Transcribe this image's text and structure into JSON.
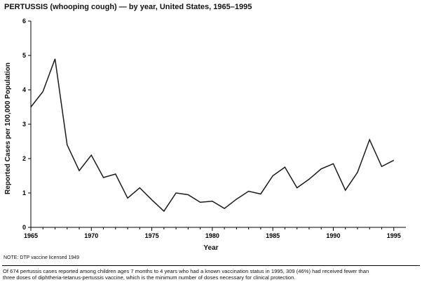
{
  "title": "PERTUSSIS (whooping cough) — by year, United States, 1965–1995",
  "note": "NOTE: DTP vaccine licensed 1949",
  "footnote_line1": "Of 674 pertussis cases reported among children ages 7 months to 4 years who had a known vaccination status in 1995, 309 (46%) had received fewer than",
  "footnote_line2": "three doses of diphtheria-tetanus-pertussis vaccine, which is the minimum number of doses necessary for clinical protection.",
  "chart_data": {
    "type": "line",
    "title": "PERTUSSIS (whooping cough) — by year, United States, 1965–1995",
    "xlabel": "Year",
    "ylabel": "Reported Cases per 100,000 Population",
    "ylim": [
      0,
      6
    ],
    "y_ticks": [
      0,
      1,
      2,
      3,
      4,
      5,
      6
    ],
    "x_ticks": [
      1965,
      1970,
      1975,
      1980,
      1985,
      1990,
      1995
    ],
    "x": [
      1965,
      1966,
      1967,
      1968,
      1969,
      1970,
      1971,
      1972,
      1973,
      1974,
      1975,
      1976,
      1977,
      1978,
      1979,
      1980,
      1981,
      1982,
      1983,
      1984,
      1985,
      1986,
      1987,
      1988,
      1989,
      1990,
      1991,
      1992,
      1993,
      1994,
      1995
    ],
    "values": [
      3.5,
      3.95,
      4.9,
      2.4,
      1.65,
      2.1,
      1.45,
      1.55,
      0.85,
      1.15,
      0.8,
      0.47,
      1.0,
      0.95,
      0.73,
      0.76,
      0.55,
      0.82,
      1.05,
      0.97,
      1.5,
      1.75,
      1.15,
      1.4,
      1.7,
      1.85,
      1.08,
      1.6,
      2.55,
      1.77,
      1.95
    ],
    "line_color": "#1a1a1a",
    "grid": "off",
    "legend": "none"
  }
}
